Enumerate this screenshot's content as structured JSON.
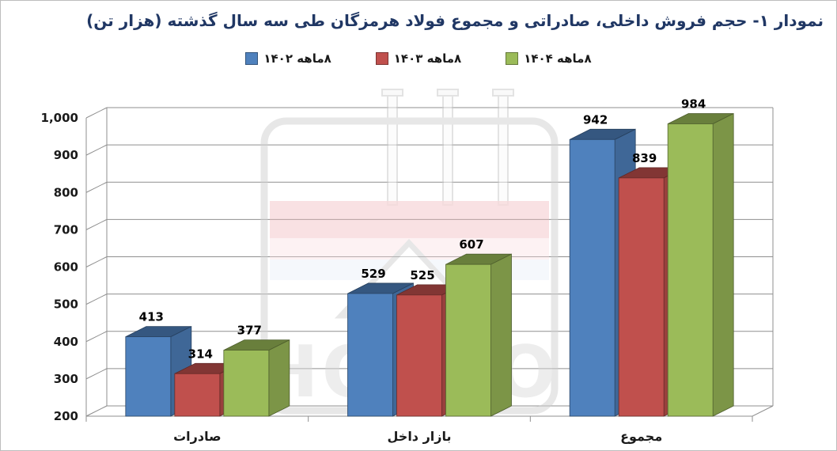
{
  "title": "نمودار ۱- حجم فروش داخلی، صادراتی و مجموع فولاد هرمزگان طی سه سال گذشته (هزار تن)",
  "watermark": "HOSCO",
  "colors": {
    "title": "#203764",
    "grid": "#8f8f8f",
    "label_text": "#1a1a1a"
  },
  "chart_data": {
    "type": "bar",
    "style": "3d-clustered-column",
    "categories": [
      "صادرات",
      "بازار داخل",
      "مجموع"
    ],
    "series": [
      {
        "name": "۸ماهه ۱۴۰۲",
        "color": "#4F81BD",
        "values": [
          413,
          529,
          942
        ]
      },
      {
        "name": "۸ماهه ۱۴۰۳",
        "color": "#C0504D",
        "values": [
          314,
          525,
          839
        ]
      },
      {
        "name": "۸ماهه ۱۴۰۴",
        "color": "#9BBB59",
        "values": [
          377,
          607,
          984
        ]
      }
    ],
    "y_ticks": [
      200,
      300,
      400,
      500,
      600,
      700,
      800,
      900,
      1000
    ],
    "ylim": [
      200,
      1000
    ],
    "grid": true,
    "legend_position": "top",
    "unit": "هزار تن"
  }
}
